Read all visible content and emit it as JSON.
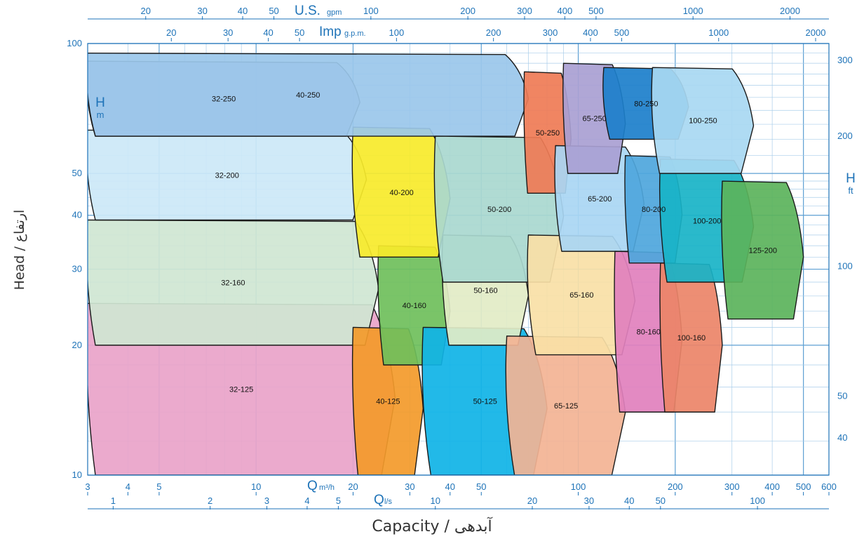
{
  "chart_data": {
    "type": "area",
    "xlabel": "Capacity / آبدهی",
    "ylabel": "Head / ارتفاع",
    "x_scale": "log",
    "y_scale": "log",
    "xlim": [
      3,
      600
    ],
    "ylim": [
      10,
      100
    ],
    "left_axis": {
      "unit_main": "H",
      "unit_sub": "m",
      "ticks": [
        "10",
        "20",
        "30",
        "40",
        "50",
        "100"
      ]
    },
    "right_axis": {
      "unit_main": "H",
      "unit_sub": "ft",
      "ticks": [
        "40",
        "50",
        "100",
        "200",
        "300"
      ]
    },
    "bottom_axis_m3h": {
      "unit_main": "Q",
      "unit_sub": "m³/h",
      "ticks": [
        "3",
        "4",
        "5",
        "10",
        "20",
        "30",
        "40",
        "50",
        "100",
        "200",
        "300",
        "400",
        "500",
        "600"
      ]
    },
    "bottom_axis_ls": {
      "unit_main": "Q",
      "unit_sub": "l/s",
      "ticks": [
        "1",
        "2",
        "3",
        "4",
        "5",
        "10",
        "20",
        "30",
        "40",
        "50",
        "100"
      ]
    },
    "top_axis_usgpm": {
      "unit_main": "U.S.",
      "unit_sub": "gpm",
      "ticks": [
        "20",
        "30",
        "40",
        "50",
        "100",
        "200",
        "300",
        "400",
        "500",
        "1000",
        "2000"
      ]
    },
    "top_axis_impgpm": {
      "unit_main": "Imp",
      "unit_sub": "g.p.m.",
      "ticks": [
        "20",
        "30",
        "40",
        "50",
        "100",
        "200",
        "300",
        "400",
        "500",
        "1000",
        "2000"
      ]
    },
    "regions": [
      {
        "name": "32-125",
        "color": "#e9a3c9",
        "q_min": 3,
        "q_max": 27,
        "h_min": 10,
        "h_max": 25
      },
      {
        "name": "32-160",
        "color": "#cfe6d3",
        "q_min": 3,
        "q_max": 24,
        "h_min": 20,
        "h_max": 39
      },
      {
        "name": "32-200",
        "color": "#cce8f7",
        "q_min": 3,
        "q_max": 22,
        "h_min": 39,
        "h_max": 63
      },
      {
        "name": "32-250",
        "color": "#b9b4dc",
        "q_min": 3,
        "q_max": 21,
        "h_min": 61,
        "h_max": 91
      },
      {
        "name": "40-125",
        "color": "#f39a2a",
        "q_min": 20,
        "q_max": 33,
        "h_min": 10,
        "h_max": 22
      },
      {
        "name": "40-160",
        "color": "#6fbf5b",
        "q_min": 24,
        "q_max": 40,
        "h_min": 18,
        "h_max": 34
      },
      {
        "name": "40-200",
        "color": "#f7ea2a",
        "q_min": 20,
        "q_max": 40,
        "h_min": 32,
        "h_max": 64
      },
      {
        "name": "40-250",
        "color": "#9ac7ea",
        "q_min": 3,
        "q_max": 70,
        "h_min": 61,
        "h_max": 95
      },
      {
        "name": "50-125",
        "color": "#0fb3e6",
        "q_min": 33,
        "q_max": 80,
        "h_min": 10,
        "h_max": 22
      },
      {
        "name": "50-160",
        "color": "#e2ecc6",
        "q_min": 38,
        "q_max": 70,
        "h_min": 20,
        "h_max": 36
      },
      {
        "name": "50-200",
        "color": "#a9d8cf",
        "q_min": 36,
        "q_max": 90,
        "h_min": 28,
        "h_max": 61
      },
      {
        "name": "50-250",
        "color": "#ef7b55",
        "q_min": 68,
        "q_max": 95,
        "h_min": 45,
        "h_max": 86
      },
      {
        "name": "65-125",
        "color": "#f3b394",
        "q_min": 60,
        "q_max": 140,
        "h_min": 10,
        "h_max": 21
      },
      {
        "name": "65-160",
        "color": "#f9dfa6",
        "q_min": 70,
        "q_max": 150,
        "h_min": 19,
        "h_max": 36
      },
      {
        "name": "65-200",
        "color": "#a9d6f3",
        "q_min": 85,
        "q_max": 160,
        "h_min": 33,
        "h_max": 58
      },
      {
        "name": "65-250",
        "color": "#a9a0d3",
        "q_min": 90,
        "q_max": 140,
        "h_min": 50,
        "h_max": 90
      },
      {
        "name": "80-160",
        "color": "#e180bd",
        "q_min": 130,
        "q_max": 210,
        "h_min": 14,
        "h_max": 33
      },
      {
        "name": "80-200",
        "color": "#4ea6dc",
        "q_min": 140,
        "q_max": 210,
        "h_min": 31,
        "h_max": 55
      },
      {
        "name": "80-250",
        "color": "#1c7fcb",
        "q_min": 120,
        "q_max": 220,
        "h_min": 60,
        "h_max": 88
      },
      {
        "name": "100-160",
        "color": "#eb8468",
        "q_min": 180,
        "q_max": 280,
        "h_min": 14,
        "h_max": 31
      },
      {
        "name": "100-200",
        "color": "#18b3c7",
        "q_min": 180,
        "q_max": 350,
        "h_min": 28,
        "h_max": 54
      },
      {
        "name": "100-250",
        "color": "#a8d8f2",
        "q_min": 170,
        "q_max": 350,
        "h_min": 50,
        "h_max": 88
      },
      {
        "name": "125-200",
        "color": "#5bb35b",
        "q_min": 280,
        "q_max": 500,
        "h_min": 23,
        "h_max": 48
      }
    ]
  }
}
